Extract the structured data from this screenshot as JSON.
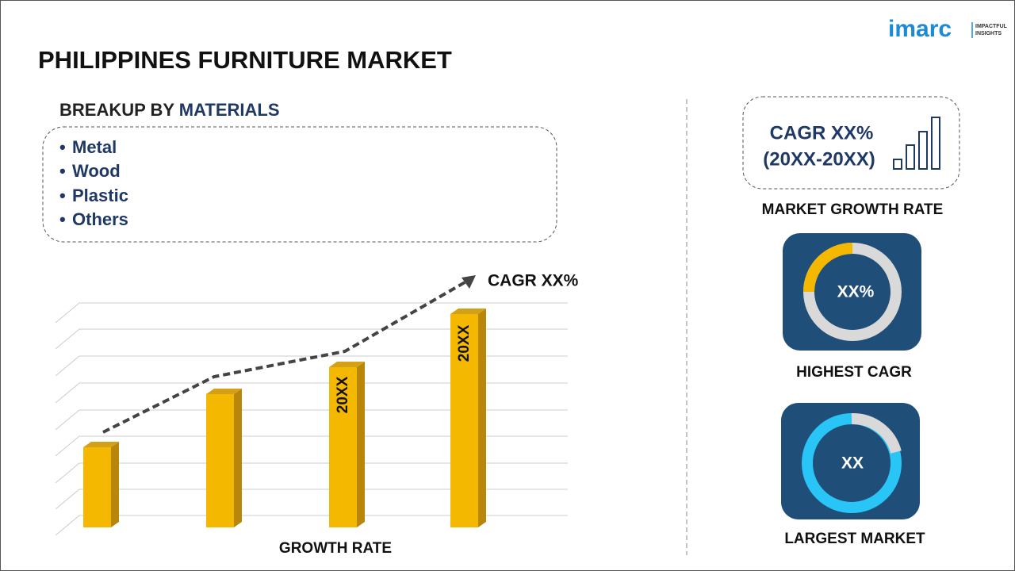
{
  "logo": {
    "name": "imarc",
    "tagline": [
      "IMPACTFUL",
      "INSIGHTS"
    ]
  },
  "title": "PHILIPPINES FURNITURE MARKET",
  "breakup": {
    "heading_prefix": "BREAKUP BY",
    "heading_highlight": "MATERIALS",
    "items": [
      "Metal",
      "Wood",
      "Plastic",
      "Others"
    ]
  },
  "chart": {
    "cagr_label": "CAGR XX%",
    "bar_labels": [
      "20XX",
      "20XX"
    ],
    "x_label": "GROWTH RATE"
  },
  "growth_card": {
    "cagr": "CAGR XX%",
    "period": "(20XX-20XX)",
    "caption": "MARKET GROWTH RATE"
  },
  "highest_cagr": {
    "value": "XX%",
    "caption": "HIGHEST CAGR"
  },
  "largest_market": {
    "value": "XX",
    "caption": "LARGEST MARKET"
  }
}
